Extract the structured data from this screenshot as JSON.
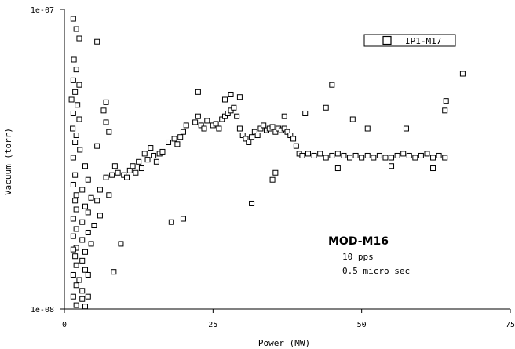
{
  "chart_data": {
    "type": "scatter",
    "title": "",
    "xlabel": "Power (MW)",
    "ylabel": "Vacuum (torr)",
    "xlim": [
      0,
      75
    ],
    "ylim": [
      1e-08,
      1e-07
    ],
    "yscale": "log",
    "x_ticks": [
      0,
      25,
      50,
      75
    ],
    "x_tick_labels": [
      "0",
      "25",
      "50",
      "75"
    ],
    "y_ticks": [
      1e-08,
      1e-07
    ],
    "y_tick_labels": [
      "1e-08",
      "1e-07"
    ],
    "grid": false,
    "legend_position": "top-right",
    "marker": "open-square",
    "series": [
      {
        "name": "IP1-M17",
        "color": "#000000",
        "points": [
          [
            1.5,
            9.3e-08
          ],
          [
            2.0,
            8.6e-08
          ],
          [
            2.5,
            8e-08
          ],
          [
            5.5,
            7.8e-08
          ],
          [
            1.6,
            6.8e-08
          ],
          [
            2.0,
            6.3e-08
          ],
          [
            1.5,
            5.8e-08
          ],
          [
            2.5,
            5.6e-08
          ],
          [
            1.8,
            5.3e-08
          ],
          [
            1.2,
            5e-08
          ],
          [
            2.2,
            4.8e-08
          ],
          [
            7.0,
            4.9e-08
          ],
          [
            6.6,
            4.6e-08
          ],
          [
            1.5,
            4.5e-08
          ],
          [
            2.5,
            4.3e-08
          ],
          [
            7.0,
            4.2e-08
          ],
          [
            1.4,
            4e-08
          ],
          [
            2.0,
            3.8e-08
          ],
          [
            7.5,
            3.9e-08
          ],
          [
            1.8,
            3.6e-08
          ],
          [
            2.6,
            3.4e-08
          ],
          [
            5.5,
            3.5e-08
          ],
          [
            1.5,
            3.2e-08
          ],
          [
            3.5,
            3e-08
          ],
          [
            8.5,
            3e-08
          ],
          [
            1.8,
            2.8e-08
          ],
          [
            4.0,
            2.7e-08
          ],
          [
            7.0,
            2.75e-08
          ],
          [
            1.5,
            2.6e-08
          ],
          [
            3.0,
            2.5e-08
          ],
          [
            6.0,
            2.5e-08
          ],
          [
            2.0,
            2.4e-08
          ],
          [
            4.5,
            2.35e-08
          ],
          [
            7.5,
            2.4e-08
          ],
          [
            1.8,
            2.3e-08
          ],
          [
            3.5,
            2.2e-08
          ],
          [
            5.5,
            2.3e-08
          ],
          [
            2.0,
            2.15e-08
          ],
          [
            4.0,
            2.1e-08
          ],
          [
            6.0,
            2.05e-08
          ],
          [
            1.5,
            2e-08
          ],
          [
            3.0,
            1.95e-08
          ],
          [
            5.0,
            1.9e-08
          ],
          [
            2.0,
            1.85e-08
          ],
          [
            4.0,
            1.8e-08
          ],
          [
            1.5,
            1.75e-08
          ],
          [
            3.0,
            1.7e-08
          ],
          [
            4.5,
            1.65e-08
          ],
          [
            2.0,
            1.6e-08
          ],
          [
            3.5,
            1.55e-08
          ],
          [
            1.8,
            1.5e-08
          ],
          [
            3.0,
            1.45e-08
          ],
          [
            2.0,
            1.4e-08
          ],
          [
            3.5,
            1.35e-08
          ],
          [
            1.5,
            1.3e-08
          ],
          [
            2.5,
            1.25e-08
          ],
          [
            4.0,
            1.3e-08
          ],
          [
            2.0,
            1.2e-08
          ],
          [
            3.0,
            1.15e-08
          ],
          [
            1.5,
            1.1e-08
          ],
          [
            3.0,
            1.08e-08
          ],
          [
            4.0,
            1.1e-08
          ],
          [
            2.0,
            1.03e-08
          ],
          [
            3.5,
            1.02e-08
          ],
          [
            1.5,
            1.58e-08
          ],
          [
            8.3,
            1.33e-08
          ],
          [
            9.5,
            1.65e-08
          ],
          [
            8.0,
            2.8e-08
          ],
          [
            9.0,
            2.85e-08
          ],
          [
            10.0,
            2.8e-08
          ],
          [
            10.5,
            2.75e-08
          ],
          [
            11.0,
            2.9e-08
          ],
          [
            11.5,
            3e-08
          ],
          [
            12.0,
            2.85e-08
          ],
          [
            12.5,
            3.1e-08
          ],
          [
            13.0,
            2.95e-08
          ],
          [
            13.5,
            3.3e-08
          ],
          [
            14.0,
            3.15e-08
          ],
          [
            14.5,
            3.45e-08
          ],
          [
            15.0,
            3.25e-08
          ],
          [
            15.5,
            3.1e-08
          ],
          [
            16.0,
            3.3e-08
          ],
          [
            16.5,
            3.35e-08
          ],
          [
            17.5,
            3.6e-08
          ],
          [
            18.5,
            3.7e-08
          ],
          [
            19.0,
            3.55e-08
          ],
          [
            19.5,
            3.75e-08
          ],
          [
            20.0,
            3.9e-08
          ],
          [
            20.5,
            4.1e-08
          ],
          [
            22.0,
            4.2e-08
          ],
          [
            22.5,
            4.4e-08
          ],
          [
            23.0,
            4.1e-08
          ],
          [
            23.5,
            4e-08
          ],
          [
            24.0,
            4.25e-08
          ],
          [
            25.0,
            4.1e-08
          ],
          [
            25.5,
            4.15e-08
          ],
          [
            26.0,
            4e-08
          ],
          [
            26.5,
            4.3e-08
          ],
          [
            27.0,
            4.4e-08
          ],
          [
            27.5,
            4.5e-08
          ],
          [
            28.0,
            4.6e-08
          ],
          [
            28.5,
            4.7e-08
          ],
          [
            29.0,
            4.4e-08
          ],
          [
            29.5,
            4e-08
          ],
          [
            30.0,
            3.8e-08
          ],
          [
            30.5,
            3.7e-08
          ],
          [
            31.0,
            3.6e-08
          ],
          [
            31.5,
            3.75e-08
          ],
          [
            32.0,
            3.9e-08
          ],
          [
            32.5,
            3.8e-08
          ],
          [
            33.0,
            4e-08
          ],
          [
            33.5,
            4.1e-08
          ],
          [
            34.0,
            3.95e-08
          ],
          [
            34.5,
            4e-08
          ],
          [
            35.0,
            4.05e-08
          ],
          [
            35.5,
            3.9e-08
          ],
          [
            36.0,
            4e-08
          ],
          [
            36.5,
            3.95e-08
          ],
          [
            37.0,
            4e-08
          ],
          [
            37.5,
            3.9e-08
          ],
          [
            38.0,
            3.8e-08
          ],
          [
            38.5,
            3.7e-08
          ],
          [
            39.0,
            3.5e-08
          ],
          [
            39.5,
            3.3e-08
          ],
          [
            40.0,
            3.25e-08
          ],
          [
            41.0,
            3.3e-08
          ],
          [
            42.0,
            3.25e-08
          ],
          [
            43.0,
            3.3e-08
          ],
          [
            44.0,
            3.2e-08
          ],
          [
            45.0,
            3.25e-08
          ],
          [
            46.0,
            3.3e-08
          ],
          [
            47.0,
            3.25e-08
          ],
          [
            48.0,
            3.2e-08
          ],
          [
            49.0,
            3.25e-08
          ],
          [
            50.0,
            3.2e-08
          ],
          [
            51.0,
            3.25e-08
          ],
          [
            52.0,
            3.2e-08
          ],
          [
            53.0,
            3.25e-08
          ],
          [
            54.0,
            3.2e-08
          ],
          [
            55.0,
            3.2e-08
          ],
          [
            56.0,
            3.25e-08
          ],
          [
            57.0,
            3.3e-08
          ],
          [
            58.0,
            3.25e-08
          ],
          [
            59.0,
            3.2e-08
          ],
          [
            60.0,
            3.25e-08
          ],
          [
            61.0,
            3.3e-08
          ],
          [
            62.0,
            3.2e-08
          ],
          [
            63.0,
            3.25e-08
          ],
          [
            64.0,
            3.2e-08
          ],
          [
            22.5,
            5.3e-08
          ],
          [
            27.0,
            5e-08
          ],
          [
            28.0,
            5.2e-08
          ],
          [
            29.5,
            5.1e-08
          ],
          [
            37.0,
            4.4e-08
          ],
          [
            40.5,
            4.5e-08
          ],
          [
            44.0,
            4.7e-08
          ],
          [
            45.0,
            5.6e-08
          ],
          [
            48.5,
            4.3e-08
          ],
          [
            51.0,
            4e-08
          ],
          [
            57.5,
            4e-08
          ],
          [
            64.0,
            4.6e-08
          ],
          [
            64.2,
            4.95e-08
          ],
          [
            67.0,
            6.1e-08
          ],
          [
            20.0,
            2e-08
          ],
          [
            18.0,
            1.95e-08
          ],
          [
            31.5,
            2.25e-08
          ],
          [
            35.0,
            2.7e-08
          ],
          [
            35.5,
            2.85e-08
          ],
          [
            46.0,
            2.95e-08
          ],
          [
            55.0,
            3e-08
          ],
          [
            62.0,
            2.95e-08
          ]
        ]
      }
    ],
    "annotations": [
      "MOD-M16",
      "10 pps",
      "0.5 micro sec"
    ]
  }
}
